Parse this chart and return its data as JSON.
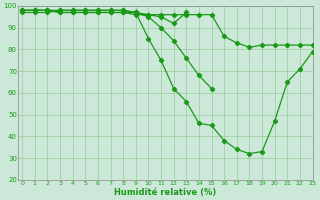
{
  "xlabel": "Humidité relative (%)",
  "background_color": "#cce8d8",
  "grid_color": "#99cc99",
  "line_color": "#1a9918",
  "xlim_min": -0.3,
  "xlim_max": 23,
  "ylim_min": 20,
  "ylim_max": 100,
  "xticks": [
    0,
    1,
    2,
    3,
    4,
    5,
    6,
    7,
    8,
    9,
    10,
    11,
    12,
    13,
    14,
    15,
    16,
    17,
    18,
    19,
    20,
    21,
    22,
    23
  ],
  "yticks": [
    20,
    30,
    40,
    50,
    60,
    70,
    80,
    90,
    100
  ],
  "lines": [
    {
      "x": [
        0,
        1,
        2,
        3,
        4,
        5,
        6,
        7,
        8,
        9,
        10,
        11,
        12,
        13,
        14,
        15,
        16,
        17,
        18,
        19,
        20,
        21,
        22,
        23
      ],
      "y": [
        98,
        98,
        98,
        97,
        97,
        97,
        97,
        97,
        97,
        96,
        96,
        96,
        96,
        96,
        96,
        96,
        86,
        83,
        81,
        82,
        82,
        82,
        82,
        82
      ]
    },
    {
      "x": [
        0,
        1,
        2,
        3,
        4,
        5,
        6,
        7,
        8,
        9,
        10,
        11,
        12,
        13,
        14,
        15,
        16,
        17,
        18,
        19,
        20,
        21,
        22,
        23
      ],
      "y": [
        98,
        98,
        98,
        98,
        98,
        98,
        98,
        98,
        98,
        97,
        85,
        75,
        62,
        56,
        46,
        45,
        38,
        34,
        32,
        33,
        47,
        65,
        71,
        79
      ]
    },
    {
      "x": [
        0,
        1,
        2,
        3,
        4,
        5,
        6,
        7,
        8,
        9,
        10,
        11,
        12,
        13,
        14,
        15
      ],
      "y": [
        97,
        97,
        97,
        98,
        98,
        98,
        98,
        98,
        98,
        97,
        95,
        90,
        84,
        76,
        68,
        62
      ]
    },
    {
      "x": [
        0,
        1,
        2,
        3,
        4,
        5,
        6,
        7,
        8,
        9,
        10,
        11,
        12,
        13
      ],
      "y": [
        98,
        98,
        98,
        97,
        97,
        97,
        97,
        97,
        97,
        97,
        96,
        95,
        92,
        97
      ]
    }
  ]
}
